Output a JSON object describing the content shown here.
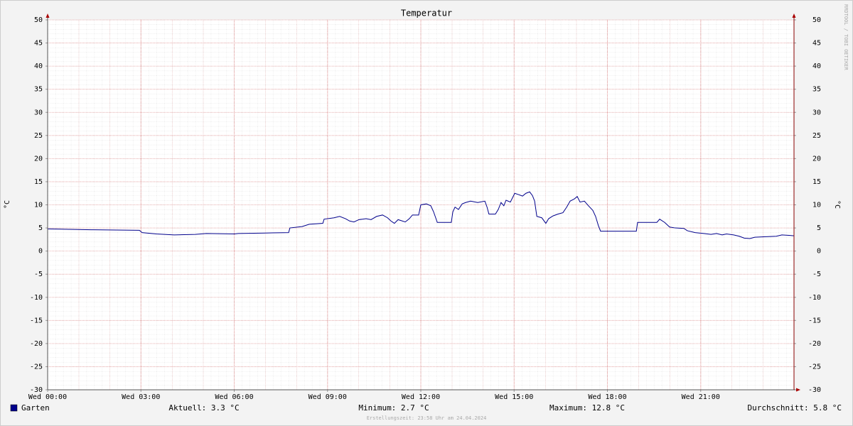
{
  "chart_data": {
    "type": "line",
    "title": "Temperatur",
    "ylabel": "°C",
    "y2label": "°C",
    "watermark": "RRDTOOL / TOBI OETIKER",
    "footer": "Erstellungszeit: 23:58 Uhr am 24.04.2024",
    "xlim": [
      0,
      24
    ],
    "ylim": [
      -30,
      50
    ],
    "xticks": [
      {
        "value": 0,
        "label": "Wed 00:00"
      },
      {
        "value": 3,
        "label": "Wed 03:00"
      },
      {
        "value": 6,
        "label": "Wed 06:00"
      },
      {
        "value": 9,
        "label": "Wed 09:00"
      },
      {
        "value": 12,
        "label": "Wed 12:00"
      },
      {
        "value": 15,
        "label": "Wed 15:00"
      },
      {
        "value": 18,
        "label": "Wed 18:00"
      },
      {
        "value": 21,
        "label": "Wed 21:00"
      }
    ],
    "yticks": [
      50,
      45,
      40,
      35,
      30,
      25,
      20,
      15,
      10,
      5,
      0,
      -5,
      -10,
      -15,
      -20,
      -25,
      -30
    ],
    "grid": true,
    "series": [
      {
        "name": "Garten",
        "color": "#00008b",
        "x": [
          0,
          1.49,
          2.95,
          3.04,
          3.5,
          4.07,
          4.75,
          5.1,
          6.01,
          6.13,
          6.97,
          7.75,
          7.79,
          8.18,
          8.41,
          8.85,
          8.89,
          9.21,
          9.39,
          9.58,
          9.71,
          9.85,
          10.01,
          10.24,
          10.4,
          10.58,
          10.77,
          10.93,
          11.04,
          11.15,
          11.27,
          11.5,
          11.63,
          11.73,
          11.93,
          12.0,
          12.18,
          12.32,
          12.41,
          12.53,
          12.98,
          13.03,
          13.1,
          13.21,
          13.33,
          13.44,
          13.6,
          13.83,
          14.06,
          14.13,
          14.19,
          14.4,
          14.49,
          14.58,
          14.67,
          14.74,
          14.88,
          15.02,
          15.15,
          15.27,
          15.38,
          15.5,
          15.59,
          15.66,
          15.73,
          15.89,
          16.02,
          16.11,
          16.25,
          16.41,
          16.57,
          16.69,
          16.8,
          16.94,
          17.03,
          17.12,
          17.26,
          17.39,
          17.53,
          17.62,
          17.71,
          17.78,
          18.93,
          18.97,
          19.59,
          19.68,
          19.84,
          20.0,
          20.18,
          20.46,
          20.57,
          20.82,
          21.1,
          21.33,
          21.51,
          21.69,
          21.83,
          22.06,
          22.24,
          22.4,
          22.58,
          22.74,
          23.04,
          23.43,
          23.61,
          23.84,
          24.0
        ],
        "values": [
          4.8,
          4.6,
          4.5,
          4.0,
          3.7,
          3.5,
          3.6,
          3.8,
          3.7,
          3.8,
          3.9,
          4.0,
          5.0,
          5.3,
          5.8,
          6.0,
          6.9,
          7.2,
          7.5,
          7.0,
          6.5,
          6.3,
          6.8,
          7.0,
          6.8,
          7.5,
          7.8,
          7.2,
          6.5,
          6.0,
          6.8,
          6.3,
          7.0,
          7.8,
          7.8,
          10.0,
          10.2,
          9.8,
          8.5,
          6.2,
          6.2,
          8.5,
          9.5,
          9.0,
          10.2,
          10.5,
          10.8,
          10.5,
          10.8,
          9.5,
          8.0,
          8.0,
          9.0,
          10.5,
          9.8,
          11.0,
          10.6,
          12.5,
          12.2,
          11.9,
          12.5,
          12.8,
          12.0,
          10.8,
          7.5,
          7.2,
          6.0,
          7.0,
          7.6,
          8.0,
          8.3,
          9.5,
          10.8,
          11.3,
          11.8,
          10.6,
          10.8,
          9.8,
          8.8,
          7.5,
          5.5,
          4.3,
          4.3,
          6.2,
          6.2,
          6.9,
          6.2,
          5.2,
          5.0,
          4.9,
          4.4,
          4.0,
          3.8,
          3.6,
          3.8,
          3.5,
          3.7,
          3.5,
          3.2,
          2.8,
          2.7,
          3.0,
          3.1,
          3.2,
          3.5,
          3.4,
          3.3
        ]
      }
    ],
    "stats": [
      "Aktuell: 3.3 °C",
      "Minimum: 2.7 °C",
      "Maximum: 12.8 °C",
      "Durchschnitt: 5.8 °C"
    ]
  }
}
